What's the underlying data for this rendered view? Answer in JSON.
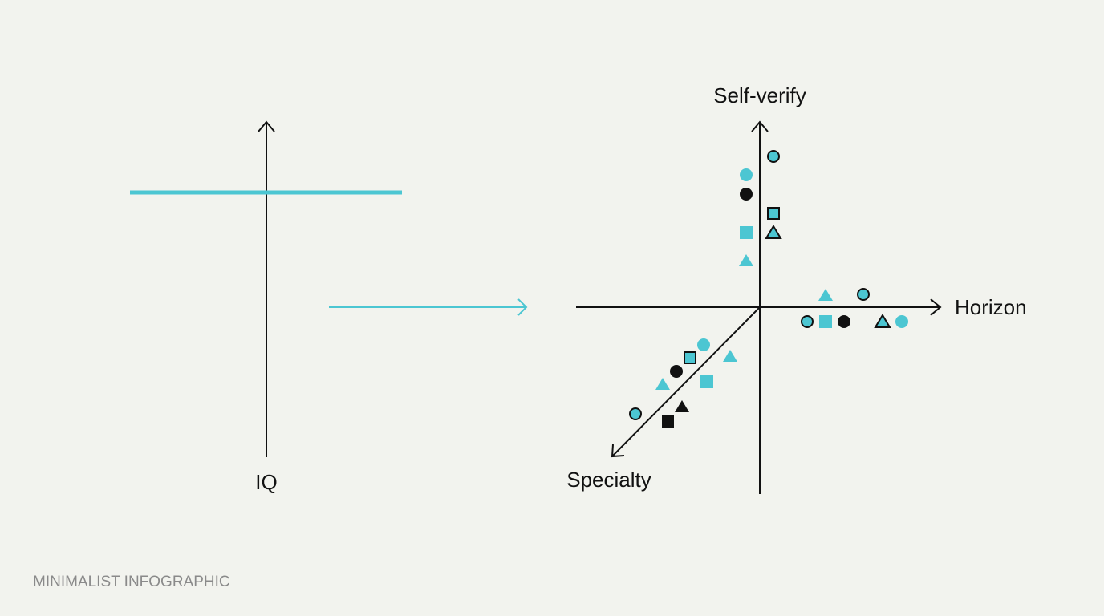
{
  "left_axis": {
    "label": "IQ"
  },
  "right_axes": {
    "vertical": "Self-verify",
    "horizontal": "Horizon",
    "diagonal": "Specialty"
  },
  "footer": "MINIMALIST INFOGRAPHIC"
}
